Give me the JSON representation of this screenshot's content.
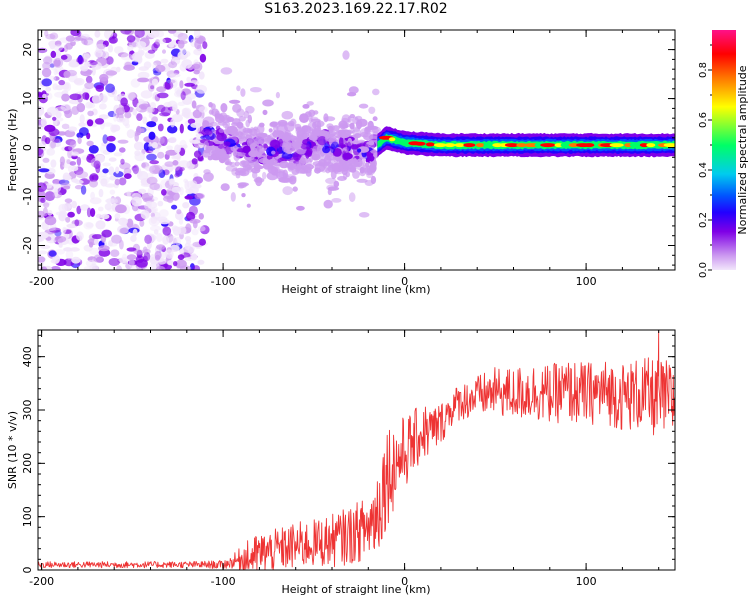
{
  "title": "S163.2023.169.22.17.R02",
  "colors": {
    "snr_line": "#ee3333",
    "colormap": [
      "#f2e6fb",
      "#cc99f0",
      "#7f00e6",
      "#2200ff",
      "#0055ff",
      "#00ccee",
      "#00ff66",
      "#ffff00",
      "#ff7700",
      "#ff0000",
      "#ff1188"
    ]
  },
  "chart_data": [
    {
      "type": "heatmap",
      "title": "S163.2023.169.22.17.R02",
      "xlabel": "Height of straight line (km)",
      "ylabel": "Frequency (Hz)",
      "xlim": [
        -202,
        149
      ],
      "ylim": [
        -25,
        24
      ],
      "xticks": [
        -200,
        -100,
        0,
        100
      ],
      "yticks": [
        -20,
        -10,
        0,
        10,
        20
      ],
      "colorbar": {
        "label": "Normalized spectral amplitude",
        "range": [
          0,
          0.96
        ],
        "ticks": [
          0.0,
          0.2,
          0.4,
          0.6,
          0.8
        ]
      },
      "regions": [
        {
          "description": "diffuse low-amplitude noise",
          "x_range": [
            -202,
            -110
          ],
          "freq_range": [
            -25,
            24
          ],
          "amplitude": 0.1
        },
        {
          "description": "scattered signal",
          "x_range": [
            -110,
            -15
          ],
          "freq_range": [
            -20,
            12
          ],
          "amplitude": 0.25
        },
        {
          "description": "strong narrow tone near 0 Hz",
          "x_range": [
            -15,
            149
          ],
          "freq_range": [
            -1,
            2
          ],
          "amplitude": 0.85
        }
      ],
      "ridge": {
        "x": [
          -110,
          -100,
          -90,
          -80,
          -70,
          -60,
          -50,
          -40,
          -30,
          -20,
          -10,
          0,
          20,
          40,
          60,
          80,
          100,
          120,
          140
        ],
        "freq": [
          3,
          2,
          0,
          -1,
          0,
          -2,
          1,
          0,
          0,
          -1,
          2,
          1,
          0.5,
          0.5,
          0.5,
          0.5,
          0.5,
          0.5,
          0.5
        ]
      }
    },
    {
      "type": "line",
      "title": "",
      "xlabel": "Height of straight line (km)",
      "ylabel": "SNR (10 * v/v)",
      "xlim": [
        -202,
        149
      ],
      "ylim": [
        0,
        450
      ],
      "xticks": [
        -200,
        -100,
        0,
        100
      ],
      "yticks": [
        0,
        100,
        200,
        300,
        400
      ],
      "series": [
        {
          "name": "SNR",
          "x": [
            -200,
            -180,
            -160,
            -140,
            -120,
            -100,
            -95,
            -90,
            -85,
            -80,
            -70,
            -60,
            -50,
            -40,
            -30,
            -20,
            -15,
            -10,
            -5,
            0,
            5,
            10,
            15,
            20,
            25,
            30,
            40,
            50,
            60,
            70,
            80,
            90,
            100,
            110,
            120,
            130,
            140,
            149
          ],
          "mean": [
            10,
            10,
            10,
            10,
            10,
            10,
            15,
            20,
            25,
            30,
            38,
            45,
            50,
            55,
            65,
            80,
            110,
            180,
            200,
            220,
            240,
            260,
            260,
            275,
            300,
            315,
            325,
            335,
            330,
            335,
            330,
            335,
            330,
            335,
            325,
            330,
            320,
            320
          ],
          "spread": [
            6,
            6,
            6,
            6,
            6,
            8,
            12,
            25,
            35,
            40,
            40,
            45,
            45,
            50,
            55,
            60,
            90,
            100,
            80,
            70,
            60,
            55,
            50,
            40,
            35,
            35,
            40,
            45,
            50,
            55,
            55,
            60,
            60,
            60,
            65,
            70,
            75,
            75
          ],
          "max": [
            448
          ]
        }
      ]
    }
  ]
}
